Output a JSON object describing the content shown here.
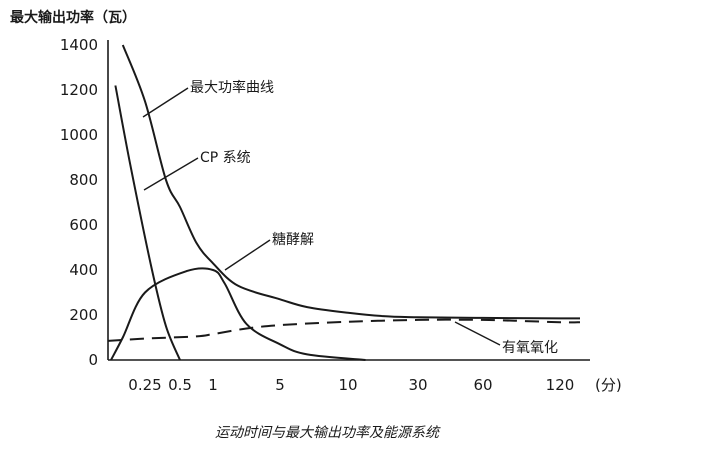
{
  "chart_data": {
    "type": "line",
    "y_unit_label": "最大输出功率（瓦）",
    "x_unit_label": "(分)",
    "caption": "运动时间与最大输出功率及能源系统",
    "x_ticks": [
      "0.25",
      "0.5",
      "1",
      "5",
      "10",
      "30",
      "60",
      "120"
    ],
    "y_ticks": [
      "0",
      "200",
      "400",
      "600",
      "800",
      "1000",
      "1200",
      "1400"
    ],
    "ylim": [
      0,
      1400
    ],
    "x_scale": "nonlinear (compressed time axis)",
    "grid": false,
    "series": [
      {
        "name": "最大功率曲线",
        "style": "solid",
        "points": [
          [
            0.1,
            1400
          ],
          [
            0.25,
            1150
          ],
          [
            0.4,
            800
          ],
          [
            0.5,
            680
          ],
          [
            0.75,
            520
          ],
          [
            1,
            430
          ],
          [
            2.5,
            330
          ],
          [
            5,
            270
          ],
          [
            7,
            235
          ],
          [
            10,
            210
          ],
          [
            20,
            195
          ],
          [
            30,
            190
          ],
          [
            60,
            187
          ],
          [
            120,
            185
          ],
          [
            150,
            185
          ]
        ]
      },
      {
        "name": "CP 系统",
        "style": "solid",
        "points": [
          [
            0.05,
            1220
          ],
          [
            0.15,
            870
          ],
          [
            0.3,
            400
          ],
          [
            0.4,
            150
          ],
          [
            0.5,
            0
          ]
        ]
      },
      {
        "name": "糖酵解",
        "style": "solid",
        "points": [
          [
            0.02,
            0
          ],
          [
            0.1,
            100
          ],
          [
            0.25,
            300
          ],
          [
            0.6,
            395
          ],
          [
            1,
            400
          ],
          [
            1.7,
            340
          ],
          [
            3,
            160
          ],
          [
            5,
            70
          ],
          [
            7,
            25
          ],
          [
            15,
            0
          ]
        ]
      },
      {
        "name": "有氧氧化",
        "style": "dashed",
        "points": [
          [
            0,
            85
          ],
          [
            0.25,
            95
          ],
          [
            0.75,
            105
          ],
          [
            1,
            115
          ],
          [
            3,
            140
          ],
          [
            5,
            155
          ],
          [
            10,
            170
          ],
          [
            30,
            178
          ],
          [
            60,
            178
          ],
          [
            120,
            168
          ],
          [
            150,
            168
          ]
        ]
      }
    ]
  }
}
